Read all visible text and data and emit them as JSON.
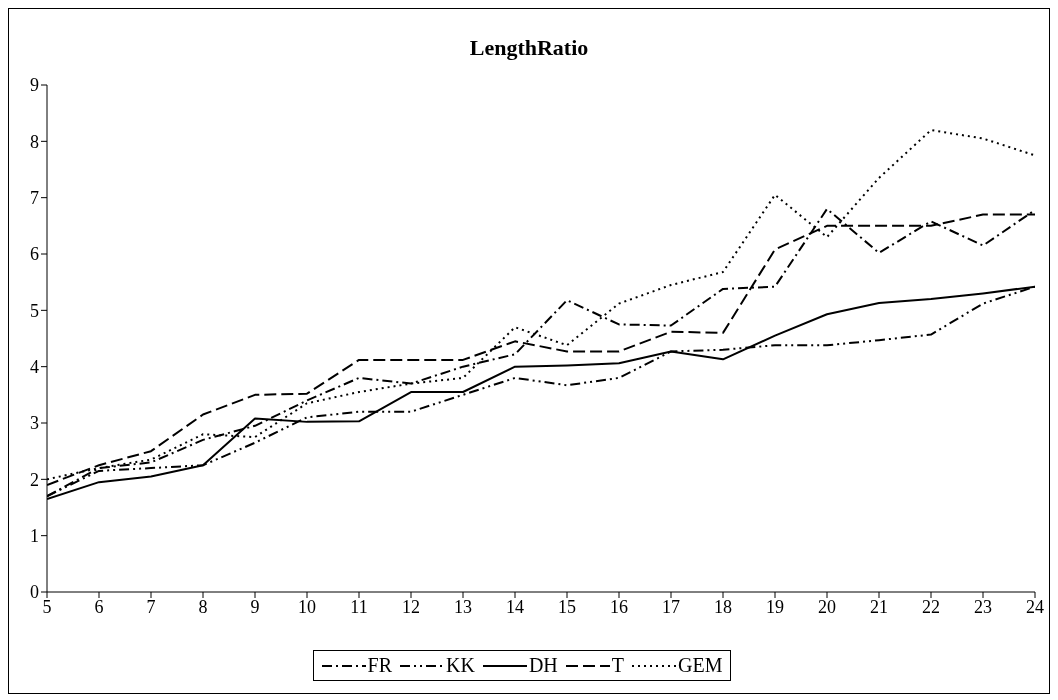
{
  "chart_data": {
    "type": "line",
    "title": "LengthRatio",
    "x": [
      5,
      6,
      7,
      8,
      9,
      10,
      11,
      12,
      13,
      14,
      15,
      16,
      17,
      18,
      19,
      20,
      21,
      22,
      23,
      24
    ],
    "xlim": [
      5,
      24
    ],
    "xticks": [
      5,
      6,
      7,
      8,
      9,
      10,
      11,
      12,
      13,
      14,
      15,
      16,
      17,
      18,
      19,
      20,
      21,
      22,
      23,
      24
    ],
    "ylim": [
      0,
      9
    ],
    "yticks": [
      0,
      1,
      2,
      3,
      4,
      5,
      6,
      7,
      8,
      9
    ],
    "grid": false,
    "legend": "bottom",
    "marker": "none",
    "series": [
      {
        "name": "FR",
        "color": "#000000",
        "line_style": "dashdot",
        "values": [
          1.7,
          2.2,
          2.3,
          2.7,
          2.95,
          3.4,
          3.8,
          3.7,
          4.0,
          4.22,
          5.18,
          4.75,
          4.73,
          5.38,
          5.42,
          6.8,
          6.02,
          6.58,
          6.15,
          6.78
        ]
      },
      {
        "name": "KK",
        "color": "#000000",
        "line_style": "dashdotdot",
        "values": [
          1.7,
          2.15,
          2.2,
          2.25,
          2.65,
          3.1,
          3.2,
          3.2,
          3.5,
          3.8,
          3.67,
          3.8,
          4.27,
          4.3,
          4.38,
          4.38,
          4.47,
          4.57,
          5.12,
          5.42
        ]
      },
      {
        "name": "DH",
        "color": "#000000",
        "line_style": "solid",
        "values": [
          1.65,
          1.95,
          2.05,
          2.25,
          3.08,
          3.02,
          3.03,
          3.55,
          3.55,
          4.0,
          4.02,
          4.06,
          4.27,
          4.13,
          4.55,
          4.93,
          5.13,
          5.2,
          5.3,
          5.42
        ]
      },
      {
        "name": "T",
        "color": "#000000",
        "line_style": "dashed",
        "values": [
          1.9,
          2.25,
          2.5,
          3.15,
          3.5,
          3.52,
          4.12,
          4.12,
          4.12,
          4.45,
          4.27,
          4.27,
          4.62,
          4.6,
          6.08,
          6.5,
          6.5,
          6.5,
          6.7,
          6.7
        ]
      },
      {
        "name": "GEM",
        "color": "#000000",
        "line_style": "dotted",
        "values": [
          2.0,
          2.2,
          2.35,
          2.8,
          2.75,
          3.35,
          3.55,
          3.7,
          3.8,
          4.7,
          4.38,
          5.12,
          5.45,
          5.68,
          7.05,
          6.3,
          7.35,
          8.2,
          8.05,
          7.75
        ]
      }
    ]
  }
}
